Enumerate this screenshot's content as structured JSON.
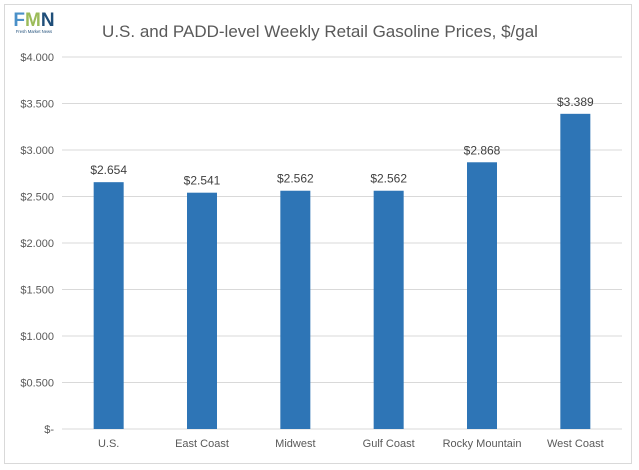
{
  "logo": {
    "letters": "FMN",
    "caption": "Fresh Market News",
    "colors": [
      "#4a90c8",
      "#9bbb59",
      "#1f4e79"
    ]
  },
  "chart_data": {
    "type": "bar",
    "title": "U.S. and PADD-level Weekly Retail Gasoline Prices, $/gal",
    "xlabel": "",
    "ylabel": "",
    "categories": [
      "U.S.",
      "East Coast",
      "Midwest",
      "Gulf Coast",
      "Rocky Mountain",
      "West Coast"
    ],
    "values": [
      2.654,
      2.541,
      2.562,
      2.562,
      2.868,
      3.389
    ],
    "data_labels": [
      "$2.654",
      "$2.541",
      "$2.562",
      "$2.562",
      "$2.868",
      "$3.389"
    ],
    "ylim": [
      0,
      4
    ],
    "yticks": [
      0,
      0.5,
      1,
      1.5,
      2,
      2.5,
      3,
      3.5,
      4
    ],
    "ytick_labels": [
      "$-",
      "$0.500",
      "$1.000",
      "$1.500",
      "$2.000",
      "$2.500",
      "$3.000",
      "$3.500",
      "$4.000"
    ],
    "grid": true,
    "legend": "none",
    "bar_color": "#2e75b6",
    "grid_color": "#d9d9d9"
  }
}
